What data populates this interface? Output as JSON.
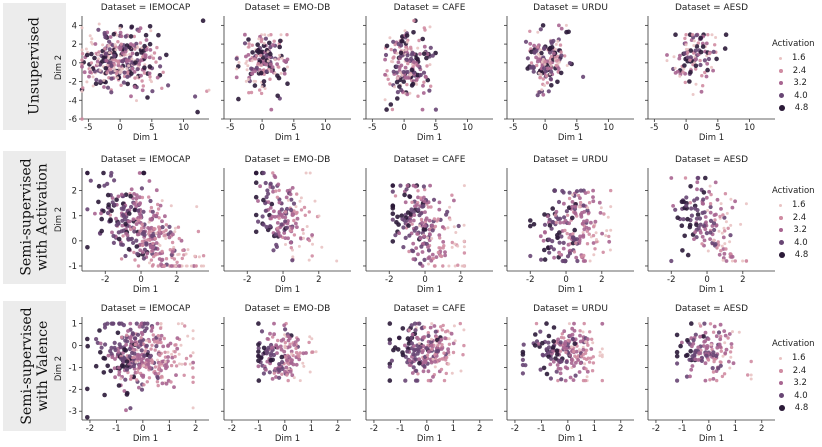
{
  "figure": {
    "row_labels": [
      {
        "line1": "Unsupervised",
        "line2": ""
      },
      {
        "line1": "Semi-supervised",
        "line2": "with Activation"
      },
      {
        "line1": "Semi-supervised",
        "line2": "with Valence"
      }
    ],
    "legend": {
      "title": "Activation",
      "levels": [
        "1.6",
        "2.4",
        "3.2",
        "4.0",
        "4.8"
      ],
      "colors": [
        "#e9c3c3",
        "#d08ca2",
        "#a86591",
        "#684674",
        "#2b1a38"
      ]
    }
  },
  "chart_data": [
    {
      "type": "scatter",
      "row": 0,
      "title": "Dataset = IEMOCAP",
      "xlabel": "Dim 1",
      "ylabel": "Dim 2",
      "xlim": [
        -6,
        14
      ],
      "ylim": [
        -6,
        5
      ],
      "xticks": [
        "-5",
        "0",
        "5",
        "10"
      ],
      "yticks": [
        "-6",
        "-4",
        "-2",
        "0",
        "2",
        "4"
      ],
      "cluster": {
        "cx": 0,
        "cy": 0.2,
        "sx": 3,
        "sy": 1.6,
        "n": 340,
        "spread_x": [
          -6,
          14
        ],
        "spread_y": [
          -6,
          4.5
        ]
      }
    },
    {
      "type": "scatter",
      "row": 0,
      "title": "Dataset = EMO-DB",
      "xlabel": "Dim 1",
      "ylabel": "Dim 2",
      "xlim": [
        -6,
        14
      ],
      "ylim": [
        -6,
        5
      ],
      "xticks": [
        "-5",
        "0",
        "5",
        "10"
      ],
      "yticks": [],
      "cluster": {
        "cx": 0,
        "cy": 0,
        "sx": 1.8,
        "sy": 1.4,
        "n": 180,
        "spread_x": [
          -4,
          4
        ],
        "spread_y": [
          -5,
          3
        ]
      }
    },
    {
      "type": "scatter",
      "row": 0,
      "title": "Dataset = CAFE",
      "xlabel": "Dim 1",
      "ylabel": "Dim 2",
      "xlim": [
        -6,
        14
      ],
      "ylim": [
        -6,
        5
      ],
      "xticks": [
        "-5",
        "0",
        "5",
        "10"
      ],
      "yticks": [],
      "cluster": {
        "cx": 0.5,
        "cy": 0,
        "sx": 1.6,
        "sy": 1.8,
        "n": 200,
        "spread_x": [
          -3,
          5
        ],
        "spread_y": [
          -5,
          4.5
        ]
      }
    },
    {
      "type": "scatter",
      "row": 0,
      "title": "Dataset = URDU",
      "xlabel": "Dim 1",
      "ylabel": "Dim 2",
      "xlim": [
        -6,
        14
      ],
      "ylim": [
        -6,
        5
      ],
      "xticks": [
        "-5",
        "0",
        "5",
        "10"
      ],
      "yticks": [],
      "cluster": {
        "cx": 0.3,
        "cy": 0.3,
        "sx": 1.6,
        "sy": 1.6,
        "n": 160,
        "spread_x": [
          -3,
          7
        ],
        "spread_y": [
          -4,
          4
        ]
      }
    },
    {
      "type": "scatter",
      "row": 0,
      "title": "Dataset = AESD",
      "xlabel": "Dim 1",
      "ylabel": "Dim 2",
      "xlim": [
        -6,
        14
      ],
      "ylim": [
        -6,
        5
      ],
      "xticks": [
        "-5",
        "0",
        "5",
        "10"
      ],
      "yticks": [],
      "cluster": {
        "cx": 1.2,
        "cy": 0.5,
        "sx": 1.8,
        "sy": 1.6,
        "n": 110,
        "spread_x": [
          -3,
          8
        ],
        "spread_y": [
          -4,
          3
        ]
      }
    },
    {
      "type": "scatter",
      "row": 1,
      "title": "Dataset = IEMOCAP",
      "xlabel": "Dim 1",
      "ylabel": "Dim 2",
      "xlim": [
        -3.3,
        3.8
      ],
      "ylim": [
        -1.2,
        2.9
      ],
      "xticks": [
        "-2",
        "0",
        "2"
      ],
      "yticks": [
        "-1",
        "0",
        "1",
        "2"
      ],
      "cluster": {
        "cx": 0.1,
        "cy": 0.5,
        "sx": 1.3,
        "sy": 0.7,
        "n": 360,
        "spread_x": [
          -3,
          3.5
        ],
        "spread_y": [
          -1,
          2.7
        ],
        "tilt": -0.45
      }
    },
    {
      "type": "scatter",
      "row": 1,
      "title": "Dataset = EMO-DB",
      "xlabel": "Dim 1",
      "ylabel": "Dim 2",
      "xlim": [
        -3.3,
        3.8
      ],
      "ylim": [
        -1.2,
        2.9
      ],
      "xticks": [
        "-2",
        "0",
        "2"
      ],
      "yticks": [],
      "cluster": {
        "cx": 0.1,
        "cy": 0.9,
        "sx": 0.8,
        "sy": 0.8,
        "n": 170,
        "spread_x": [
          -1.5,
          3
        ],
        "spread_y": [
          -0.8,
          2.7
        ],
        "tilt": -0.5
      }
    },
    {
      "type": "scatter",
      "row": 1,
      "title": "Dataset = CAFE",
      "xlabel": "Dim 1",
      "ylabel": "Dim 2",
      "xlim": [
        -3.3,
        3.8
      ],
      "ylim": [
        -1.2,
        2.9
      ],
      "xticks": [
        "-2",
        "0",
        "2"
      ],
      "yticks": [],
      "cluster": {
        "cx": 0,
        "cy": 0.6,
        "sx": 0.9,
        "sy": 0.9,
        "n": 220,
        "spread_x": [
          -1.8,
          2.2
        ],
        "spread_y": [
          -1,
          2.2
        ],
        "tilt": -0.3
      }
    },
    {
      "type": "scatter",
      "row": 1,
      "title": "Dataset = URDU",
      "xlabel": "Dim 1",
      "ylabel": "Dim 2",
      "xlim": [
        -3.3,
        3.8
      ],
      "ylim": [
        -1.2,
        2.9
      ],
      "xticks": [
        "-2",
        "0",
        "2"
      ],
      "yticks": [],
      "cluster": {
        "cx": 0.4,
        "cy": 0.5,
        "sx": 0.9,
        "sy": 0.8,
        "n": 200,
        "spread_x": [
          -2,
          2.5
        ],
        "spread_y": [
          -0.8,
          2
        ]
      }
    },
    {
      "type": "scatter",
      "row": 1,
      "title": "Dataset = AESD",
      "xlabel": "Dim 1",
      "ylabel": "Dim 2",
      "xlim": [
        -3.3,
        3.8
      ],
      "ylim": [
        -1.2,
        2.9
      ],
      "xticks": [
        "-2",
        "0",
        "2"
      ],
      "yticks": [],
      "cluster": {
        "cx": 0.1,
        "cy": 0.6,
        "sx": 0.9,
        "sy": 0.8,
        "n": 150,
        "spread_x": [
          -2,
          2.2
        ],
        "spread_y": [
          -0.8,
          2.5
        ],
        "tilt": -0.3
      }
    },
    {
      "type": "scatter",
      "row": 2,
      "title": "Dataset = IEMOCAP",
      "xlabel": "Dim 1",
      "ylabel": "Dim 2",
      "xlim": [
        -2.3,
        2.5
      ],
      "ylim": [
        -3.4,
        1.3
      ],
      "xticks": [
        "-2",
        "-1",
        "0",
        "1",
        "2"
      ],
      "yticks": [
        "-3",
        "-2",
        "-1",
        "0",
        "1"
      ],
      "cluster": {
        "cx": -0.1,
        "cy": -0.4,
        "sx": 0.8,
        "sy": 0.75,
        "n": 360,
        "spread_x": [
          -2.1,
          1.9
        ],
        "spread_y": [
          -3.3,
          1
        ]
      }
    },
    {
      "type": "scatter",
      "row": 2,
      "title": "Dataset = EMO-DB",
      "xlabel": "Dim 1",
      "ylabel": "Dim 2",
      "xlim": [
        -2.3,
        2.5
      ],
      "ylim": [
        -3.4,
        1.3
      ],
      "xticks": [
        "-2",
        "-1",
        "0",
        "1",
        "2"
      ],
      "yticks": [],
      "cluster": {
        "cx": -0.1,
        "cy": -0.4,
        "sx": 0.55,
        "sy": 0.6,
        "n": 160,
        "spread_x": [
          -1,
          1.5
        ],
        "spread_y": [
          -1.6,
          1
        ]
      }
    },
    {
      "type": "scatter",
      "row": 2,
      "title": "Dataset = CAFE",
      "xlabel": "Dim 1",
      "ylabel": "Dim 2",
      "xlim": [
        -2.3,
        2.5
      ],
      "ylim": [
        -3.4,
        1.3
      ],
      "xticks": [
        "-2",
        "-1",
        "0",
        "1",
        "2"
      ],
      "yticks": [],
      "cluster": {
        "cx": 0,
        "cy": -0.3,
        "sx": 0.6,
        "sy": 0.6,
        "n": 220,
        "spread_x": [
          -1.4,
          1.4
        ],
        "spread_y": [
          -1.6,
          1
        ]
      }
    },
    {
      "type": "scatter",
      "row": 2,
      "title": "Dataset = URDU",
      "xlabel": "Dim 1",
      "ylabel": "Dim 2",
      "xlim": [
        -2.3,
        2.5
      ],
      "ylim": [
        -3.4,
        1.3
      ],
      "xticks": [
        "-2",
        "-1",
        "0",
        "1",
        "2"
      ],
      "yticks": [],
      "cluster": {
        "cx": 0,
        "cy": -0.3,
        "sx": 0.6,
        "sy": 0.6,
        "n": 200,
        "spread_x": [
          -1.7,
          1.3
        ],
        "spread_y": [
          -1.6,
          1
        ]
      }
    },
    {
      "type": "scatter",
      "row": 2,
      "title": "Dataset = AESD",
      "xlabel": "Dim 1",
      "ylabel": "Dim 2",
      "xlim": [
        -2.3,
        2.5
      ],
      "ylim": [
        -3.4,
        1.3
      ],
      "xticks": [
        "-2",
        "-1",
        "0",
        "1",
        "2"
      ],
      "yticks": [],
      "cluster": {
        "cx": 0,
        "cy": -0.3,
        "sx": 0.6,
        "sy": 0.55,
        "n": 140,
        "spread_x": [
          -1.2,
          1.6
        ],
        "spread_y": [
          -1.6,
          1
        ]
      }
    }
  ]
}
